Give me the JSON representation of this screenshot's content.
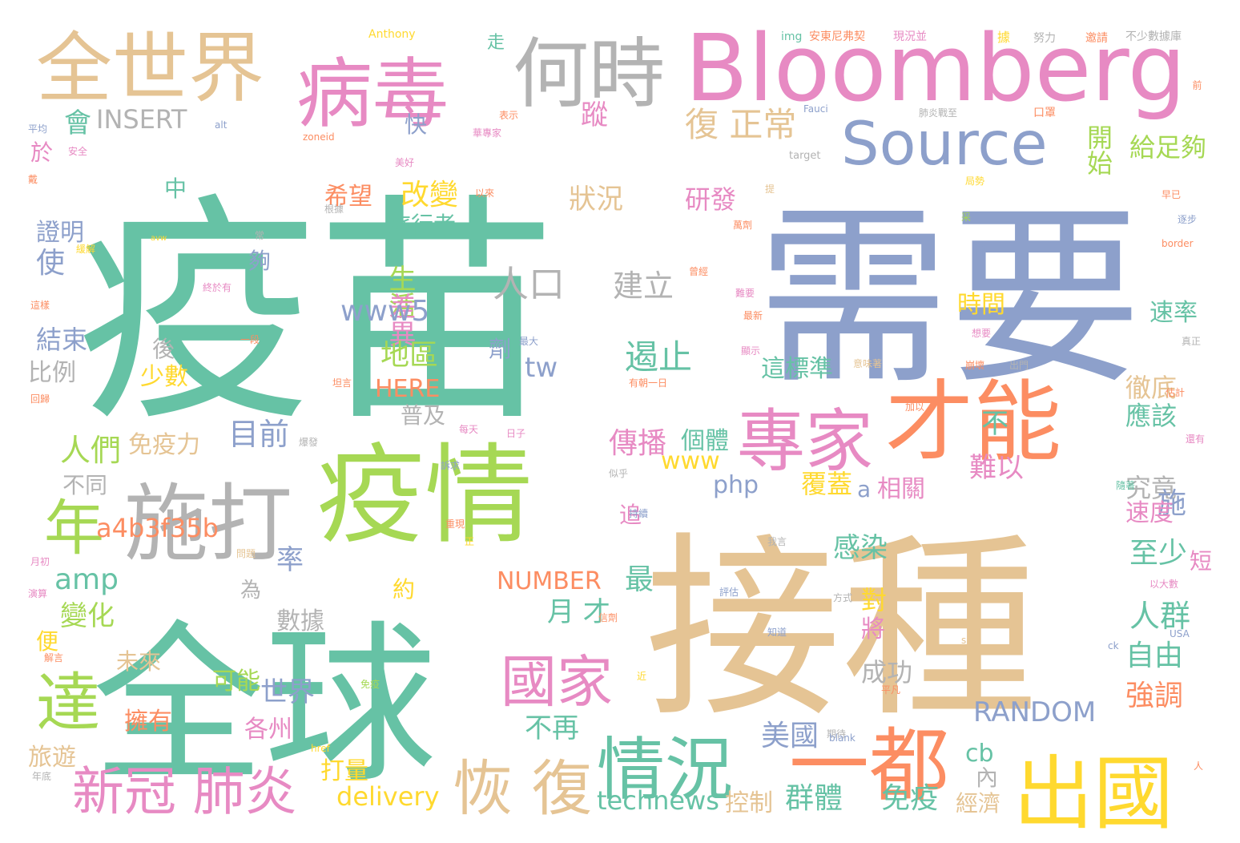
{
  "image_type": "word-cloud",
  "palette": {
    "background": "#ffffff",
    "green": "#66c2a5",
    "orange": "#fc8d62",
    "blue": "#8da0cb",
    "pink": "#e78ac3",
    "lime": "#a6d854",
    "yellow": "#ffd92f",
    "tan": "#e5c494",
    "gray": "#b3b3b3"
  },
  "words": [
    {
      "text": "疫苗",
      "color": "green"
    },
    {
      "text": "需要",
      "color": "blue"
    },
    {
      "text": "接種",
      "color": "tan"
    },
    {
      "text": "全球",
      "color": "green"
    },
    {
      "text": "疫情",
      "color": "lime"
    },
    {
      "text": "Bloomberg",
      "color": "pink"
    },
    {
      "text": "全世界",
      "color": "tan"
    },
    {
      "text": "病毒",
      "color": "pink"
    },
    {
      "text": "何時",
      "color": "gray"
    },
    {
      "text": "才能",
      "color": "orange"
    },
    {
      "text": "施打",
      "color": "gray"
    },
    {
      "text": "出國",
      "color": "yellow"
    },
    {
      "text": "專家",
      "color": "pink"
    },
    {
      "text": "Source",
      "color": "blue"
    },
    {
      "text": "一都",
      "color": "orange"
    },
    {
      "text": "情況",
      "color": "green"
    },
    {
      "text": "年",
      "color": "lime"
    },
    {
      "text": "達",
      "color": "lime"
    },
    {
      "text": "國家",
      "color": "pink"
    },
    {
      "text": "恢 復",
      "color": "tan"
    },
    {
      "text": "新冠 肺炎",
      "color": "pink"
    },
    {
      "text": "人口",
      "color": "gray"
    },
    {
      "text": "建立",
      "color": "gray"
    },
    {
      "text": "遏止",
      "color": "green"
    },
    {
      "text": "復 正常",
      "color": "tan"
    },
    {
      "text": "INSERT",
      "color": "gray"
    },
    {
      "text": "改變",
      "color": "yellow"
    },
    {
      "text": "狀況",
      "color": "tan"
    },
    {
      "text": "研發",
      "color": "pink"
    },
    {
      "text": "開始",
      "color": "lime"
    },
    {
      "text": "給足夠",
      "color": "lime"
    },
    {
      "text": "蹤",
      "color": "pink"
    },
    {
      "text": "會",
      "color": "green"
    },
    {
      "text": "快",
      "color": "blue"
    },
    {
      "text": "希望",
      "color": "orange"
    },
    {
      "text": "生活",
      "color": "lime"
    },
    {
      "text": "差異",
      "color": "pink"
    },
    {
      "text": "旅行者",
      "color": "green"
    },
    {
      "text": "www5",
      "color": "blue"
    },
    {
      "text": "地區",
      "color": "lime"
    },
    {
      "text": "tw",
      "color": "blue"
    },
    {
      "text": "少數",
      "color": "yellow"
    },
    {
      "text": "HERE",
      "color": "orange"
    },
    {
      "text": "普及",
      "color": "gray"
    },
    {
      "text": "目前",
      "color": "blue"
    },
    {
      "text": "人們",
      "color": "lime"
    },
    {
      "text": "免疫力",
      "color": "tan"
    },
    {
      "text": "傳播",
      "color": "pink"
    },
    {
      "text": "個體",
      "color": "green"
    },
    {
      "text": "這標準",
      "color": "green"
    },
    {
      "text": "www",
      "color": "yellow"
    },
    {
      "text": "php",
      "color": "blue"
    },
    {
      "text": "a4b3f35b",
      "color": "orange"
    },
    {
      "text": "amp",
      "color": "green"
    },
    {
      "text": "NUMBER",
      "color": "orange"
    },
    {
      "text": "率",
      "color": "blue"
    },
    {
      "text": "最",
      "color": "green"
    },
    {
      "text": "月 才",
      "color": "green"
    },
    {
      "text": "數據",
      "color": "gray"
    },
    {
      "text": "變化",
      "color": "lime"
    },
    {
      "text": "世界",
      "color": "blue"
    },
    {
      "text": "可能",
      "color": "lime"
    },
    {
      "text": "未來",
      "color": "tan"
    },
    {
      "text": "各州",
      "color": "pink"
    },
    {
      "text": "擁有",
      "color": "orange"
    },
    {
      "text": "不再",
      "color": "green"
    },
    {
      "text": "美國",
      "color": "blue"
    },
    {
      "text": "打量",
      "color": "yellow"
    },
    {
      "text": "delivery",
      "color": "yellow"
    },
    {
      "text": "technews",
      "color": "green"
    },
    {
      "text": "控制",
      "color": "tan"
    },
    {
      "text": "群體",
      "color": "green"
    },
    {
      "text": "免疫",
      "color": "green"
    },
    {
      "text": "cb",
      "color": "green"
    },
    {
      "text": "RANDOM",
      "color": "blue"
    },
    {
      "text": "經濟",
      "color": "tan"
    },
    {
      "text": "內",
      "color": "gray"
    },
    {
      "text": "成功",
      "color": "gray"
    },
    {
      "text": "強調",
      "color": "orange"
    },
    {
      "text": "自由",
      "color": "green"
    },
    {
      "text": "人群",
      "color": "green"
    },
    {
      "text": "至少",
      "color": "green"
    },
    {
      "text": "感染",
      "color": "green"
    },
    {
      "text": "對",
      "color": "yellow"
    },
    {
      "text": "將",
      "color": "pink"
    },
    {
      "text": "覆蓋",
      "color": "yellow"
    },
    {
      "text": "相關",
      "color": "pink"
    },
    {
      "text": "難以",
      "color": "pink"
    },
    {
      "text": "究竟",
      "color": "gray"
    },
    {
      "text": "施",
      "color": "blue"
    },
    {
      "text": "速度",
      "color": "pink"
    },
    {
      "text": "應該",
      "color": "green"
    },
    {
      "text": "徹底",
      "color": "tan"
    },
    {
      "text": "速率",
      "color": "green"
    },
    {
      "text": "時間",
      "color": "yellow"
    },
    {
      "text": "n",
      "color": "blue"
    },
    {
      "text": "不",
      "color": "green"
    },
    {
      "text": "使",
      "color": "blue"
    },
    {
      "text": "證明",
      "color": "blue"
    },
    {
      "text": "結束",
      "color": "blue"
    },
    {
      "text": "比例",
      "color": "gray"
    },
    {
      "text": "不同",
      "color": "gray"
    },
    {
      "text": "旅遊",
      "color": "tan"
    },
    {
      "text": "便",
      "color": "yellow"
    },
    {
      "text": "於",
      "color": "pink"
    },
    {
      "text": "中",
      "color": "green"
    },
    {
      "text": "後",
      "color": "gray"
    },
    {
      "text": "夠",
      "color": "blue"
    },
    {
      "text": "為",
      "color": "gray"
    },
    {
      "text": "約",
      "color": "yellow"
    },
    {
      "text": "追",
      "color": "pink"
    },
    {
      "text": "a",
      "color": "blue"
    },
    {
      "text": "短",
      "color": "pink"
    },
    {
      "text": "劑",
      "color": "blue"
    },
    {
      "text": "Anthony",
      "color": "yellow"
    },
    {
      "text": "走",
      "color": "green"
    },
    {
      "text": "img",
      "color": "green"
    },
    {
      "text": "安東尼弗契",
      "color": "orange"
    },
    {
      "text": "現況並",
      "color": "pink"
    },
    {
      "text": "據",
      "color": "yellow"
    },
    {
      "text": "努力",
      "color": "gray"
    },
    {
      "text": "邀請",
      "color": "orange"
    },
    {
      "text": "不少數據庫",
      "color": "gray"
    },
    {
      "text": "肺炎戰至",
      "color": "gray"
    },
    {
      "text": "口罩",
      "color": "orange"
    },
    {
      "text": "Fauci",
      "color": "blue"
    },
    {
      "text": "表示",
      "color": "orange"
    },
    {
      "text": "華專家",
      "color": "pink"
    },
    {
      "text": "平均",
      "color": "blue"
    },
    {
      "text": "安全",
      "color": "pink"
    },
    {
      "text": "alt",
      "color": "blue"
    },
    {
      "text": "zoneid",
      "color": "orange"
    },
    {
      "text": "target",
      "color": "gray"
    },
    {
      "text": "美好",
      "color": "pink"
    },
    {
      "text": "戴",
      "color": "orange"
    },
    {
      "text": "以來",
      "color": "orange"
    },
    {
      "text": "根據",
      "color": "gray"
    },
    {
      "text": "提",
      "color": "tan"
    },
    {
      "text": "局勢",
      "color": "yellow"
    },
    {
      "text": "采",
      "color": "lime"
    },
    {
      "text": "早已",
      "color": "orange"
    },
    {
      "text": "逐步",
      "color": "blue"
    },
    {
      "text": "border",
      "color": "orange"
    },
    {
      "text": "avw",
      "color": "yellow"
    },
    {
      "text": "常",
      "color": "gray"
    },
    {
      "text": "緩解",
      "color": "yellow"
    },
    {
      "text": "終於有",
      "color": "pink"
    },
    {
      "text": "曾經",
      "color": "orange"
    },
    {
      "text": "萬劑",
      "color": "orange"
    },
    {
      "text": "難要",
      "color": "pink"
    },
    {
      "text": "最新",
      "color": "orange"
    },
    {
      "text": "這樣",
      "color": "orange"
    },
    {
      "text": "一段",
      "color": "orange"
    },
    {
      "text": "最大",
      "color": "blue"
    },
    {
      "text": "顯示",
      "color": "pink"
    },
    {
      "text": "想要",
      "color": "pink"
    },
    {
      "text": "真正",
      "color": "gray"
    },
    {
      "text": "意味著",
      "color": "tan"
    },
    {
      "text": "有朝一日",
      "color": "orange"
    },
    {
      "text": "崩壞",
      "color": "orange"
    },
    {
      "text": "出門",
      "color": "gray"
    },
    {
      "text": "坦言",
      "color": "orange"
    },
    {
      "text": "回歸",
      "color": "orange"
    },
    {
      "text": "加以",
      "color": "orange"
    },
    {
      "text": "估計",
      "color": "orange"
    },
    {
      "text": "每天",
      "color": "pink"
    },
    {
      "text": "日子",
      "color": "pink"
    },
    {
      "text": "還有",
      "color": "pink"
    },
    {
      "text": "爆發",
      "color": "gray"
    },
    {
      "text": "訴求",
      "color": "blue"
    },
    {
      "text": "似乎",
      "color": "gray"
    },
    {
      "text": "持續",
      "color": "blue"
    },
    {
      "text": "隨著",
      "color": "green"
    },
    {
      "text": "重現",
      "color": "orange"
    },
    {
      "text": "正",
      "color": "yellow"
    },
    {
      "text": "我言",
      "color": "gray"
    },
    {
      "text": "月初",
      "color": "pink"
    },
    {
      "text": "問題",
      "color": "tan"
    },
    {
      "text": "以大數",
      "color": "pink"
    },
    {
      "text": "評估",
      "color": "blue"
    },
    {
      "text": "方式",
      "color": "gray"
    },
    {
      "text": "演算",
      "color": "pink"
    },
    {
      "text": "信劑",
      "color": "orange"
    },
    {
      "text": "知道",
      "color": "blue"
    },
    {
      "text": "USA",
      "color": "blue"
    },
    {
      "text": "src",
      "color": "tan"
    },
    {
      "text": "ck",
      "color": "blue"
    },
    {
      "text": "解言",
      "color": "orange"
    },
    {
      "text": "近",
      "color": "yellow"
    },
    {
      "text": "免疫",
      "color": "lime"
    },
    {
      "text": "平凡",
      "color": "orange"
    },
    {
      "text": "期待",
      "color": "gray"
    },
    {
      "text": "href",
      "color": "yellow"
    },
    {
      "text": "blank",
      "color": "blue"
    },
    {
      "text": "年底",
      "color": "gray"
    },
    {
      "text": "人",
      "color": "orange"
    },
    {
      "text": "前",
      "color": "orange"
    }
  ]
}
